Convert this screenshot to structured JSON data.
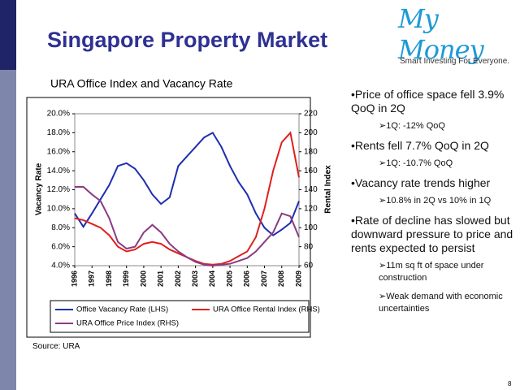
{
  "slide": {
    "title": "Singapore Property Market",
    "logo": "My Money",
    "tagline": "Smart Investing For Everyone.",
    "bullets": [
      {
        "text": "Price of office space fell 3.9% QoQ in 2Q",
        "sub": [
          "1Q: -12% QoQ"
        ]
      },
      {
        "text": "Rents fell 7.7% QoQ in 2Q",
        "sub": [
          "1Q: -10.7% QoQ"
        ]
      },
      {
        "text": "Vacancy rate trends higher",
        "sub": [
          "10.8% in 2Q vs 10% in 1Q"
        ]
      },
      {
        "text": "Rate of decline has slowed but downward pressure to price and rents expected to persist",
        "sub": [
          "11m sq ft of space under construction",
          "Weak demand with economic uncertainties"
        ]
      }
    ],
    "source": "Source: URA",
    "page_number": "8"
  },
  "chart_data": {
    "type": "line",
    "title": "URA Office Index and Vacancy Rate",
    "y_label": "Vacancy Rate",
    "y2_label": "Rental Index",
    "x": [
      1996,
      1996.5,
      1997,
      1997.5,
      1998,
      1998.5,
      1999,
      1999.5,
      2000,
      2000.5,
      2001,
      2001.5,
      2002,
      2002.5,
      2003,
      2003.5,
      2004,
      2004.5,
      2005,
      2005.5,
      2006,
      2006.5,
      2007,
      2007.5,
      2008,
      2008.5,
      2009
    ],
    "xlim": [
      1996,
      2009
    ],
    "xticks": [
      1996,
      1997,
      1998,
      1999,
      2000,
      2001,
      2002,
      2003,
      2004,
      2005,
      2006,
      2007,
      2008,
      2009
    ],
    "ylim": [
      4,
      20
    ],
    "yticks": [
      {
        "value": 4,
        "label": "4.0%"
      },
      {
        "value": 6,
        "label": "6.0%"
      },
      {
        "value": 8,
        "label": "8.0%"
      },
      {
        "value": 10,
        "label": "10.0%"
      },
      {
        "value": 12,
        "label": "12.0%"
      },
      {
        "value": 14,
        "label": "14.0%"
      },
      {
        "value": 16,
        "label": "16.0%"
      },
      {
        "value": 18,
        "label": "18.0%"
      },
      {
        "value": 20,
        "label": "20.0%"
      }
    ],
    "y2lim": [
      60,
      220
    ],
    "y2ticks": [
      60,
      80,
      100,
      120,
      140,
      160,
      180,
      200,
      220
    ],
    "grid": false,
    "series": [
      {
        "name": "Office Vacancy Rate (LHS)",
        "color": "#1f2fb0",
        "values": [
          9.5,
          8.1,
          9.5,
          11,
          12.5,
          14.5,
          14.8,
          14.2,
          13,
          11.5,
          10.5,
          11.2,
          14.5,
          15.5,
          16.5,
          17.5,
          18,
          16.5,
          14.5,
          12.8,
          11.5,
          9.5,
          8,
          7.2,
          7.8,
          8.5,
          10.8
        ]
      },
      {
        "name": "URA Office Rental Index (RHS)",
        "color": "#e0201c",
        "axis": "y2",
        "values": [
          110,
          108,
          104,
          100,
          92,
          80,
          75,
          77,
          83,
          85,
          83,
          77,
          73,
          69,
          65,
          62,
          61,
          62,
          65,
          70,
          75,
          90,
          120,
          160,
          190,
          200,
          153
        ]
      },
      {
        "name": "URA Office Price Index (RHS)",
        "color": "#8a3a84",
        "axis": "y2",
        "values": [
          143,
          143,
          135,
          128,
          110,
          85,
          78,
          80,
          95,
          103,
          95,
          83,
          75,
          69,
          64,
          61,
          60,
          61,
          62,
          65,
          68,
          75,
          85,
          95,
          115,
          112,
          90
        ]
      }
    ]
  }
}
